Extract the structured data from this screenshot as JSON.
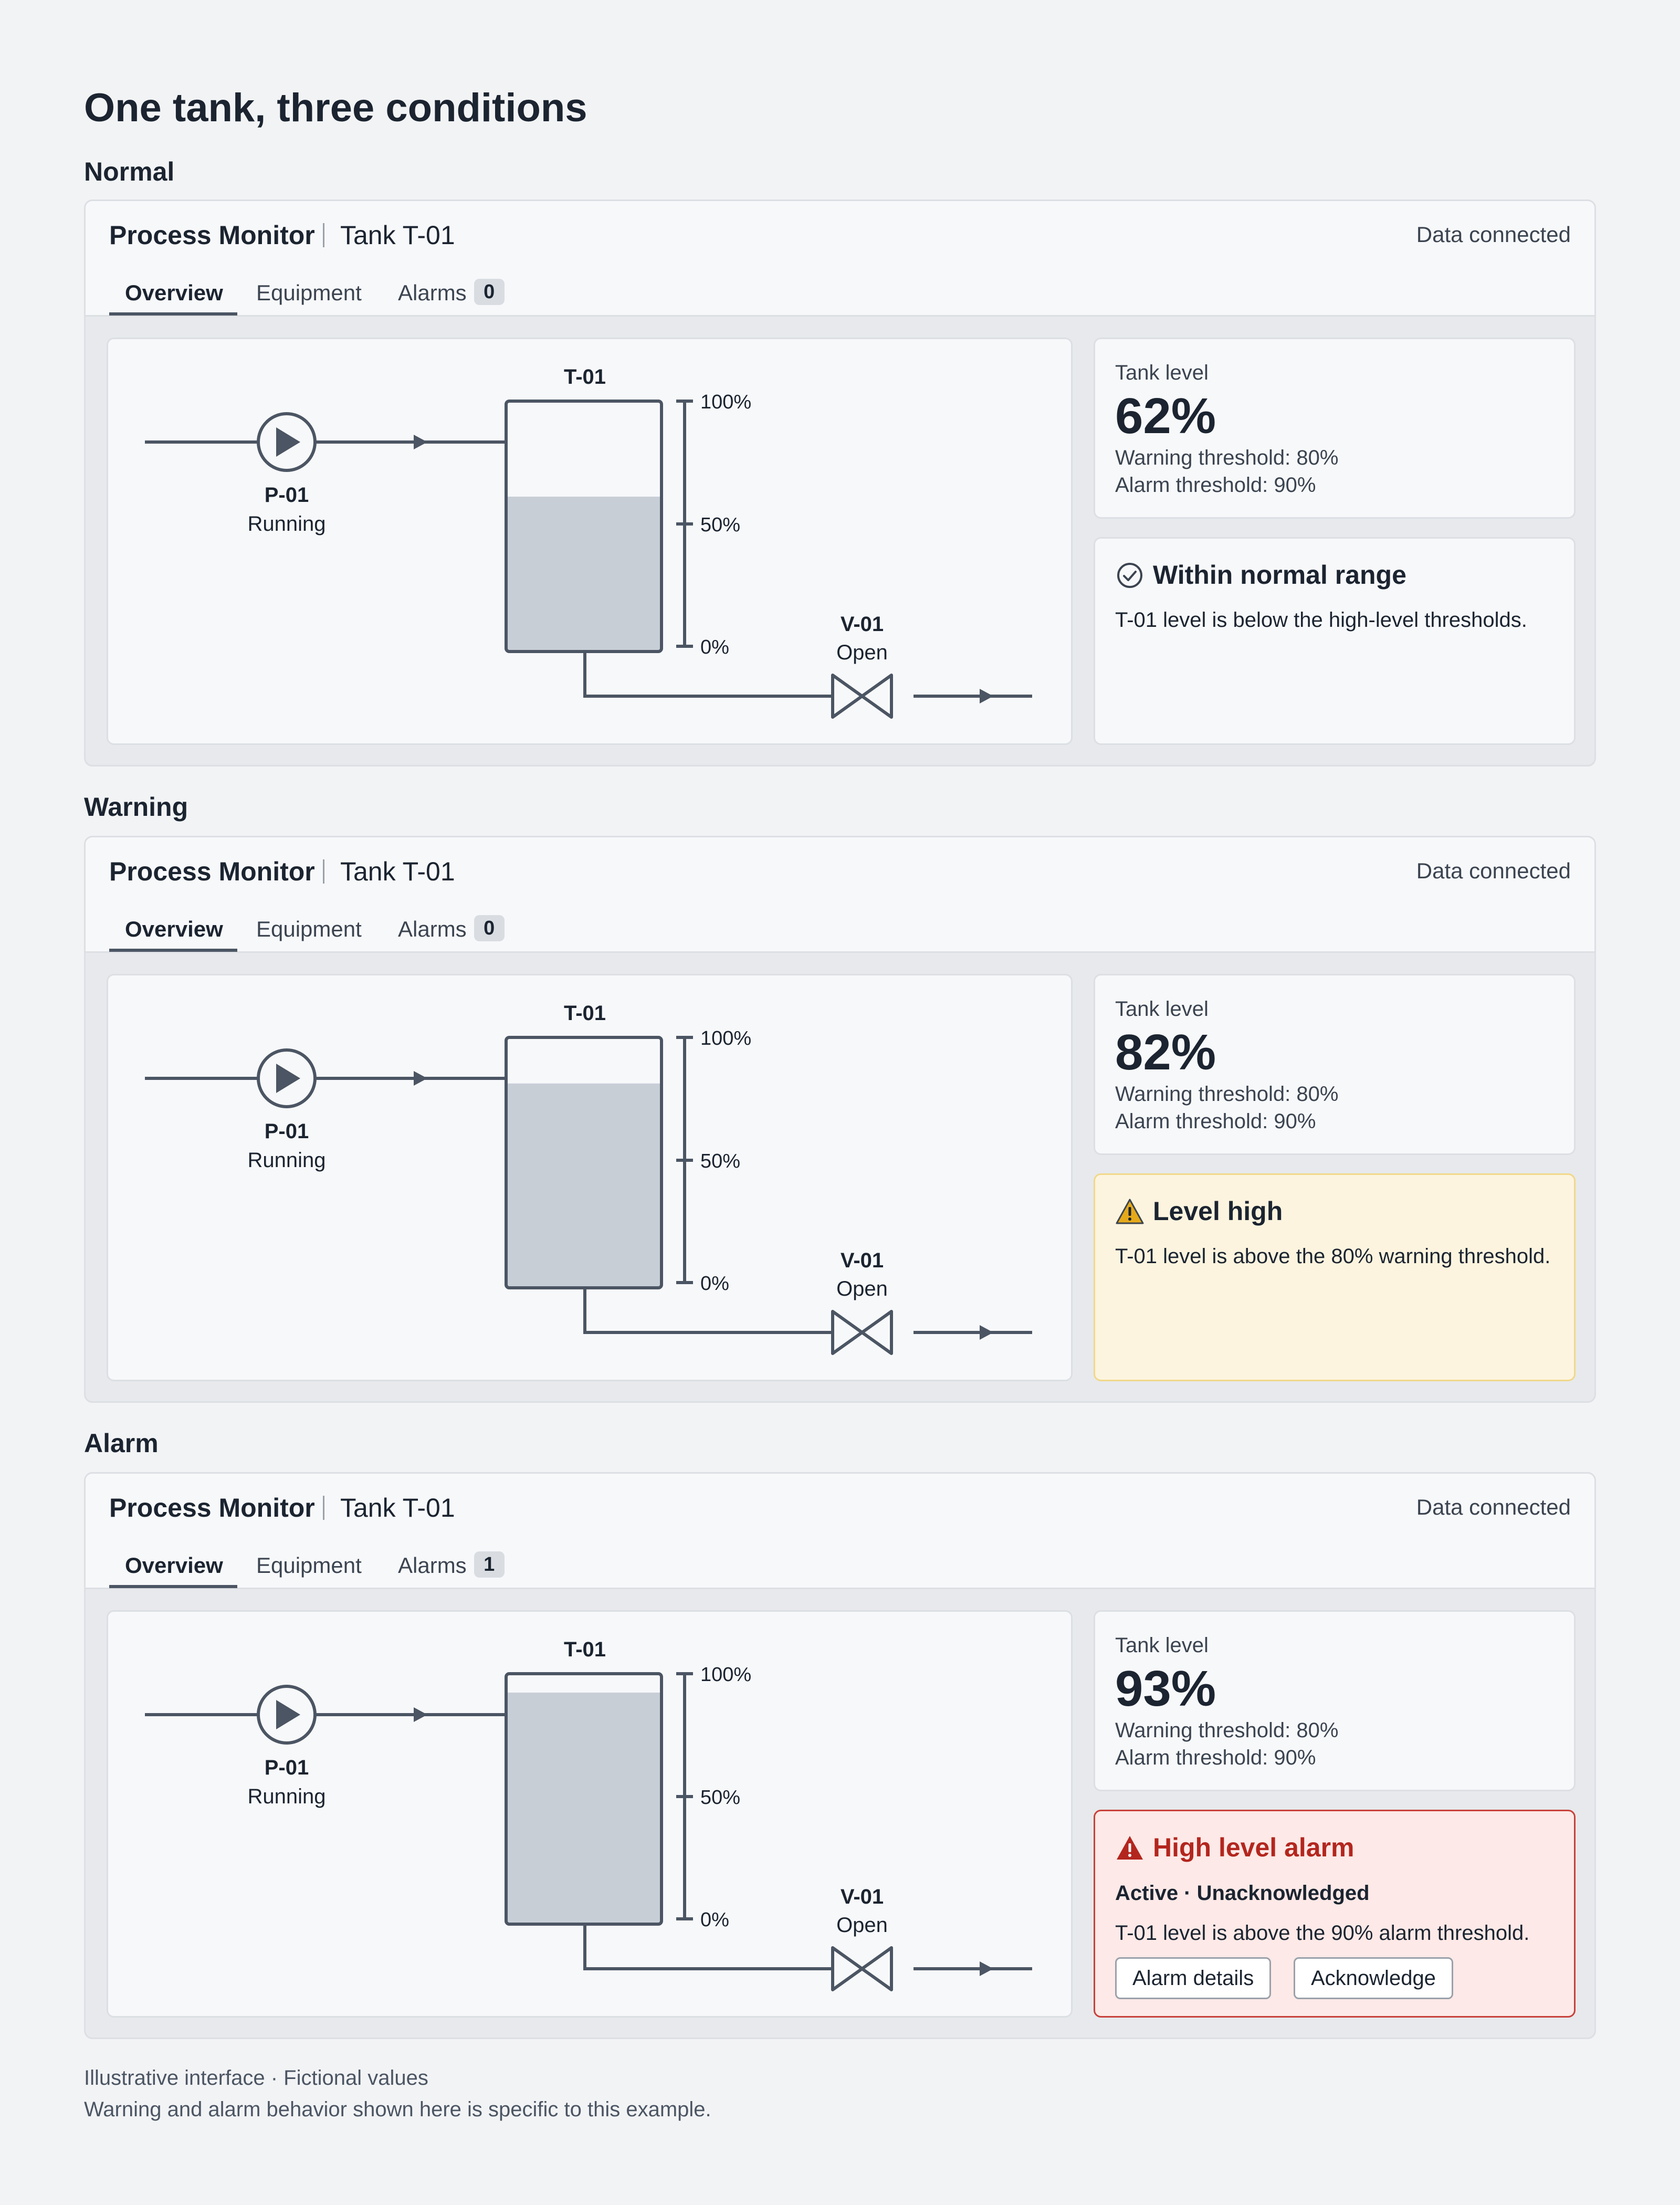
{
  "page": {
    "title": "One tank, three conditions",
    "footnote_1": "Illustrative interface · Fictional values",
    "footnote_2": "Warning and alarm behavior shown here is specific to this example."
  },
  "colors": {
    "tank_fill": "#c8ced6",
    "line": "#4b5563",
    "warning_bg": "#fdf4df",
    "warning_icon": "#e5a91a",
    "alarm_bg": "#fde9e7",
    "alarm_accent": "#b3261e"
  },
  "panels": [
    {
      "condition": "Normal",
      "header": {
        "app_name": "Process Monitor",
        "tank_name": "Tank T-01",
        "connection": "Data connected"
      },
      "tabs": {
        "overview": "Overview",
        "equipment": "Equipment",
        "alarms": "Alarms",
        "alarm_count": "0"
      },
      "diagram": {
        "pump": {
          "id": "P-01",
          "status": "Running"
        },
        "tank": {
          "id": "T-01",
          "level_pct": 62,
          "scale": [
            "100%",
            "50%",
            "0%"
          ]
        },
        "valve": {
          "id": "V-01",
          "status": "Open"
        }
      },
      "level": {
        "label": "Tank level",
        "value": "62%",
        "warning": "Warning threshold: 80%",
        "alarm": "Alarm threshold: 90%"
      },
      "status": {
        "kind": "normal",
        "icon": "check-circle-icon",
        "title": "Within normal range",
        "description": "T-01 level is below the high-level thresholds."
      }
    },
    {
      "condition": "Warning",
      "header": {
        "app_name": "Process Monitor",
        "tank_name": "Tank T-01",
        "connection": "Data connected"
      },
      "tabs": {
        "overview": "Overview",
        "equipment": "Equipment",
        "alarms": "Alarms",
        "alarm_count": "0"
      },
      "diagram": {
        "pump": {
          "id": "P-01",
          "status": "Running"
        },
        "tank": {
          "id": "T-01",
          "level_pct": 82,
          "scale": [
            "100%",
            "50%",
            "0%"
          ]
        },
        "valve": {
          "id": "V-01",
          "status": "Open"
        }
      },
      "level": {
        "label": "Tank level",
        "value": "82%",
        "warning": "Warning threshold: 80%",
        "alarm": "Alarm threshold: 90%"
      },
      "status": {
        "kind": "warning",
        "icon": "warning-triangle-icon",
        "title": "Level high",
        "description": "T-01 level is above the 80% warning threshold."
      }
    },
    {
      "condition": "Alarm",
      "header": {
        "app_name": "Process Monitor",
        "tank_name": "Tank T-01",
        "connection": "Data connected"
      },
      "tabs": {
        "overview": "Overview",
        "equipment": "Equipment",
        "alarms": "Alarms",
        "alarm_count": "1"
      },
      "diagram": {
        "pump": {
          "id": "P-01",
          "status": "Running"
        },
        "tank": {
          "id": "T-01",
          "level_pct": 93,
          "scale": [
            "100%",
            "50%",
            "0%"
          ]
        },
        "valve": {
          "id": "V-01",
          "status": "Open"
        }
      },
      "level": {
        "label": "Tank level",
        "value": "93%",
        "warning": "Warning threshold: 80%",
        "alarm": "Alarm threshold: 90%"
      },
      "status": {
        "kind": "alarm",
        "icon": "alarm-triangle-icon",
        "title": "High level alarm",
        "state": "Active · Unacknowledged",
        "description": "T-01 level is above the 90% alarm threshold.",
        "details_button": "Alarm details",
        "ack_button": "Acknowledge"
      }
    }
  ]
}
